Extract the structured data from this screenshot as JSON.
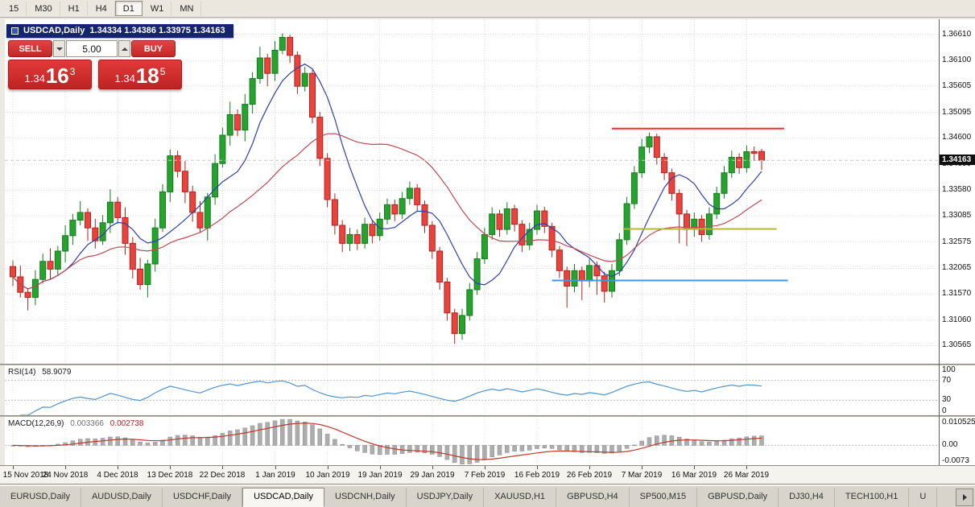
{
  "toolbar": {
    "timeframes": [
      {
        "label": "15",
        "active": false
      },
      {
        "label": "M30",
        "active": false
      },
      {
        "label": "H1",
        "active": false
      },
      {
        "label": "H4",
        "active": false
      },
      {
        "label": "D1",
        "active": true
      },
      {
        "label": "W1",
        "active": false
      },
      {
        "label": "MN",
        "active": false
      }
    ]
  },
  "chart_title": {
    "symbol_period": "USDCAD,Daily",
    "ohlc": "1.34334 1.34386 1.33975 1.34163"
  },
  "trade_panel": {
    "sell_label": "SELL",
    "buy_label": "BUY",
    "volume": "5.00",
    "bid": {
      "prefix": "1.34",
      "big": "16",
      "sup": "3"
    },
    "ask": {
      "prefix": "1.34",
      "big": "18",
      "sup": "5"
    }
  },
  "price_scale": {
    "current": "1.34163"
  },
  "rsi": {
    "title": "RSI(14)",
    "value": "58.9079",
    "scale_labels": [
      "100",
      "70",
      "30",
      "0"
    ]
  },
  "macd": {
    "title": "MACD(12,26,9)",
    "value_main": "0.003366",
    "value_signal": "0.002738",
    "scale_top": "0.010525",
    "scale_zero": "0.00",
    "scale_bottom": "-0.0073"
  },
  "tabs": [
    {
      "label": "EURUSD,Daily",
      "active": false
    },
    {
      "label": "AUDUSD,Daily",
      "active": false
    },
    {
      "label": "USDCHF,Daily",
      "active": false
    },
    {
      "label": "USDCAD,Daily",
      "active": true
    },
    {
      "label": "USDCNH,Daily",
      "active": false
    },
    {
      "label": "USDJPY,Daily",
      "active": false
    },
    {
      "label": "XAUUSD,H1",
      "active": false
    },
    {
      "label": "GBPUSD,H4",
      "active": false
    },
    {
      "label": "SP500,M15",
      "active": false
    },
    {
      "label": "GBPUSD,Daily",
      "active": false
    },
    {
      "label": "DJ30,H4",
      "active": false
    },
    {
      "label": "TECH100,H1",
      "active": false
    },
    {
      "label": "U",
      "active": false
    }
  ],
  "colors": {
    "bull": "#27a22e",
    "bull_border": "#157d1f",
    "bear": "#e8433c",
    "bear_border": "#b0241e",
    "ma_fast": "#2f3fae",
    "ma_slow": "#c14953",
    "rsi_line": "#4f94cd",
    "macd_hist": "#adadad",
    "macd_hist_border": "#8c8c8c",
    "macd_signal": "#c0392b",
    "grid": "#d8d8d8",
    "grid_sub": "#e2e2e2",
    "level_line": "#bdbdbd",
    "price_tag_bg": "#101010",
    "panel_red": "#d92f2f",
    "title_bar_bg": "#14246e"
  },
  "chart_data": {
    "type": "candlestick",
    "symbol": "USDCAD",
    "timeframe": "Daily",
    "title": "USDCAD,Daily",
    "ohlc": {
      "open": [
        1.321,
        1.319,
        1.316,
        1.315,
        1.3185,
        1.322,
        1.3205,
        1.324,
        1.327,
        1.33,
        1.3315,
        1.3285,
        1.326,
        1.3295,
        1.3335,
        1.3305,
        1.3255,
        1.3205,
        1.3175,
        1.3215,
        1.3285,
        1.3355,
        1.3425,
        1.3395,
        1.3355,
        1.3315,
        1.3285,
        1.3345,
        1.341,
        1.3465,
        1.3505,
        1.3475,
        1.3525,
        1.3575,
        1.3615,
        1.3585,
        1.363,
        1.3655,
        1.362,
        1.356,
        1.3585,
        1.35,
        1.342,
        1.334,
        1.329,
        1.3255,
        1.3272,
        1.3255,
        1.3292,
        1.327,
        1.3302,
        1.333,
        1.3312,
        1.3342,
        1.3362,
        1.333,
        1.329,
        1.324,
        1.318,
        1.312,
        1.308,
        1.3115,
        1.3165,
        1.3225,
        1.3272,
        1.3312,
        1.3282,
        1.3322,
        1.3292,
        1.3252,
        1.3282,
        1.3318,
        1.3288,
        1.3242,
        1.3202,
        1.3172,
        1.3202,
        1.3182,
        1.3212,
        1.3192,
        1.3162,
        1.3202,
        1.3262,
        1.3332,
        1.3392,
        1.3442,
        1.3462,
        1.3422,
        1.3392,
        1.3352,
        1.3312,
        1.3282,
        1.3302,
        1.3272,
        1.3312,
        1.3352,
        1.3392,
        1.3422,
        1.3402,
        1.3433,
        1.34334
      ],
      "high": [
        1.3222,
        1.3212,
        1.3168,
        1.3203,
        1.3235,
        1.3245,
        1.325,
        1.329,
        1.3312,
        1.3337,
        1.3323,
        1.3303,
        1.331,
        1.336,
        1.3345,
        1.3325,
        1.3267,
        1.3227,
        1.3223,
        1.3303,
        1.337,
        1.3437,
        1.3435,
        1.3415,
        1.3367,
        1.3337,
        1.3353,
        1.3428,
        1.348,
        1.353,
        1.3515,
        1.3545,
        1.3587,
        1.3637,
        1.3623,
        1.3648,
        1.3663,
        1.366,
        1.3628,
        1.3598,
        1.3592,
        1.351,
        1.343,
        1.3352,
        1.33,
        1.3285,
        1.3282,
        1.3305,
        1.33,
        1.3315,
        1.3342,
        1.334,
        1.3355,
        1.3375,
        1.337,
        1.3338,
        1.3298,
        1.3248,
        1.3188,
        1.3128,
        1.3128,
        1.3178,
        1.3238,
        1.3285,
        1.3325,
        1.332,
        1.3335,
        1.333,
        1.33,
        1.3295,
        1.333,
        1.3326,
        1.3295,
        1.325,
        1.321,
        1.3215,
        1.321,
        1.3225,
        1.322,
        1.32,
        1.3215,
        1.3275,
        1.3345,
        1.3405,
        1.3458,
        1.347,
        1.3468,
        1.343,
        1.34,
        1.336,
        1.332,
        1.3315,
        1.331,
        1.3325,
        1.3365,
        1.3405,
        1.3435,
        1.343,
        1.3445,
        1.3443,
        1.34386
      ],
      "low": [
        1.3172,
        1.315,
        1.3125,
        1.3135,
        1.3177,
        1.3185,
        1.3193,
        1.3218,
        1.3252,
        1.329,
        1.326,
        1.3245,
        1.3252,
        1.3275,
        1.3293,
        1.3233,
        1.3187,
        1.3165,
        1.315,
        1.32,
        1.3277,
        1.3335,
        1.3383,
        1.3333,
        1.3297,
        1.3275,
        1.326,
        1.333,
        1.3402,
        1.3445,
        1.3463,
        1.3453,
        1.3507,
        1.3565,
        1.356,
        1.357,
        1.3622,
        1.3605,
        1.3545,
        1.355,
        1.3488,
        1.3405,
        1.3325,
        1.3272,
        1.3238,
        1.324,
        1.3242,
        1.3245,
        1.3255,
        1.326,
        1.3292,
        1.3298,
        1.3302,
        1.333,
        1.3318,
        1.3275,
        1.3225,
        1.3165,
        1.3105,
        1.306,
        1.3068,
        1.3105,
        1.3155,
        1.3215,
        1.3262,
        1.3268,
        1.3272,
        1.3278,
        1.3238,
        1.3242,
        1.3272,
        1.3275,
        1.3228,
        1.3188,
        1.313,
        1.316,
        1.3145,
        1.317,
        1.3155,
        1.314,
        1.315,
        1.3192,
        1.3252,
        1.3322,
        1.3382,
        1.343,
        1.3408,
        1.3378,
        1.3338,
        1.3255,
        1.325,
        1.3268,
        1.3258,
        1.3262,
        1.3302,
        1.3342,
        1.3382,
        1.339,
        1.3392,
        1.3415,
        1.33975
      ],
      "close": [
        1.319,
        1.316,
        1.315,
        1.3185,
        1.322,
        1.3205,
        1.324,
        1.327,
        1.33,
        1.3315,
        1.3285,
        1.326,
        1.3295,
        1.3335,
        1.3305,
        1.3255,
        1.3205,
        1.3175,
        1.3215,
        1.3285,
        1.3355,
        1.3425,
        1.3395,
        1.3355,
        1.3315,
        1.3285,
        1.3345,
        1.341,
        1.3465,
        1.3505,
        1.3475,
        1.3525,
        1.3575,
        1.3615,
        1.3585,
        1.363,
        1.3655,
        1.362,
        1.356,
        1.3585,
        1.35,
        1.342,
        1.334,
        1.329,
        1.3255,
        1.3272,
        1.3255,
        1.3292,
        1.327,
        1.3302,
        1.333,
        1.3312,
        1.3342,
        1.3362,
        1.333,
        1.329,
        1.324,
        1.318,
        1.312,
        1.308,
        1.3115,
        1.3165,
        1.3225,
        1.3272,
        1.3312,
        1.3282,
        1.3322,
        1.3292,
        1.3252,
        1.3282,
        1.3318,
        1.3288,
        1.3242,
        1.3202,
        1.3172,
        1.3202,
        1.3182,
        1.3212,
        1.3192,
        1.3162,
        1.3202,
        1.3262,
        1.3332,
        1.3392,
        1.3442,
        1.3462,
        1.3422,
        1.3392,
        1.3352,
        1.3312,
        1.3282,
        1.3302,
        1.3272,
        1.3312,
        1.3352,
        1.3392,
        1.3422,
        1.3402,
        1.3433,
        1.343,
        1.34163
      ]
    },
    "x_labels": [
      "15 Nov 2018",
      "24 Nov 2018",
      "4 Dec 2018",
      "13 Dec 2018",
      "22 Dec 2018",
      "1 Jan 2019",
      "10 Jan 2019",
      "19 Jan 2019",
      "29 Jan 2019",
      "7 Feb 2019",
      "16 Feb 2019",
      "26 Feb 2019",
      "7 Mar 2019",
      "16 Mar 2019",
      "26 Mar 2019"
    ],
    "x_label_every": 7,
    "ylim": [
      1.30213,
      1.369
    ],
    "y_ticks": [
      1.3661,
      1.361,
      1.35605,
      1.35095,
      1.346,
      1.3409,
      1.3358,
      1.33085,
      1.32575,
      1.32065,
      1.3157,
      1.3106,
      1.30565
    ],
    "current_price": 1.34163,
    "overlays": {
      "ma_fast_period": 8,
      "ma_slow_period": 24
    },
    "hlines": [
      {
        "name": "resistance-line",
        "price": 1.3478,
        "bar_start": 80,
        "bar_end": 103,
        "color": "#ff2b2b",
        "width": 2
      },
      {
        "name": "mid-support-line",
        "price": 1.3283,
        "bar_start": 81.5,
        "bar_end": 102,
        "color": "#b5b832",
        "width": 2
      },
      {
        "name": "low-support-line",
        "price": 1.3183,
        "bar_start": 72,
        "bar_end": 103.5,
        "color": "#3b97e8",
        "width": 2
      }
    ],
    "indicators": [
      {
        "type": "rsi",
        "period": 14,
        "current": 58.9079,
        "range": [
          0,
          100
        ],
        "levels": [
          70,
          30
        ]
      },
      {
        "type": "macd",
        "fast": 12,
        "slow": 26,
        "signal": 9,
        "current_macd": 0.003366,
        "current_signal": 0.002738,
        "ylim": [
          -0.0073,
          0.010525
        ]
      }
    ]
  }
}
